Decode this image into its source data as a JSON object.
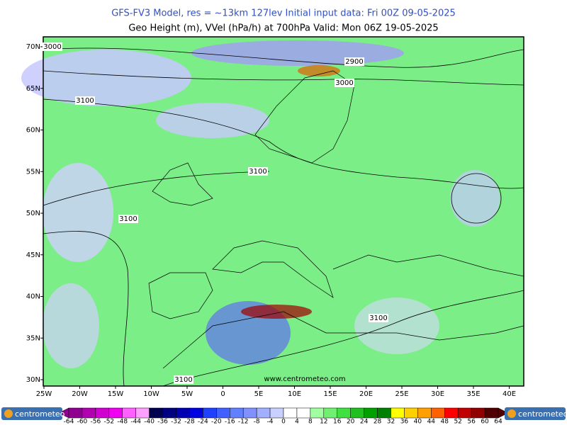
{
  "header": {
    "line1": "GFS-FV3 Model, res = ~13km 127lev   Initial input data: Fri 00Z 09-05-2025",
    "line2": "Geo Height (m), VVel (hPa/h) at 700hPa  Valid: Mon 06Z 19-05-2025"
  },
  "map": {
    "lat_labels": [
      "70N",
      "65N",
      "60N",
      "55N",
      "50N",
      "45N",
      "40N",
      "35N",
      "30N"
    ],
    "lon_labels": [
      "25W",
      "20W",
      "15W",
      "10W",
      "5W",
      "0",
      "5E",
      "10E",
      "15E",
      "20E",
      "25E",
      "30E",
      "35E",
      "40E"
    ],
    "contour_labels": [
      "3000",
      "2900",
      "3000",
      "3100",
      "3100",
      "3100",
      "3100",
      "3100"
    ],
    "watermark": "www.centrometeo.com"
  },
  "colorbar": {
    "labels": [
      "-64",
      "-60",
      "-56",
      "-52",
      "-48",
      "-44",
      "-40",
      "-36",
      "-32",
      "-28",
      "-24",
      "-20",
      "-16",
      "-12",
      "-8",
      "-4",
      "0",
      "4",
      "8",
      "12",
      "16",
      "20",
      "24",
      "28",
      "32",
      "36",
      "40",
      "44",
      "48",
      "52",
      "56",
      "60",
      "64"
    ],
    "colors": [
      "#900090",
      "#b000b0",
      "#d000d0",
      "#f000f0",
      "#ff60ff",
      "#ffa0ff",
      "#000050",
      "#000080",
      "#0000b0",
      "#0000e0",
      "#2040ff",
      "#4060ff",
      "#6080ff",
      "#8090ff",
      "#a0b0ff",
      "#c8d0ff",
      "#ffffff",
      "#ffffff",
      "#a0ffa0",
      "#70f070",
      "#40e040",
      "#20c020",
      "#00a000",
      "#008000",
      "#ffff00",
      "#ffd000",
      "#ffa000",
      "#ff6000",
      "#ff0000",
      "#c00000",
      "#900000",
      "#500000"
    ]
  },
  "logos": [
    "centrometeo",
    "centrometeo"
  ]
}
